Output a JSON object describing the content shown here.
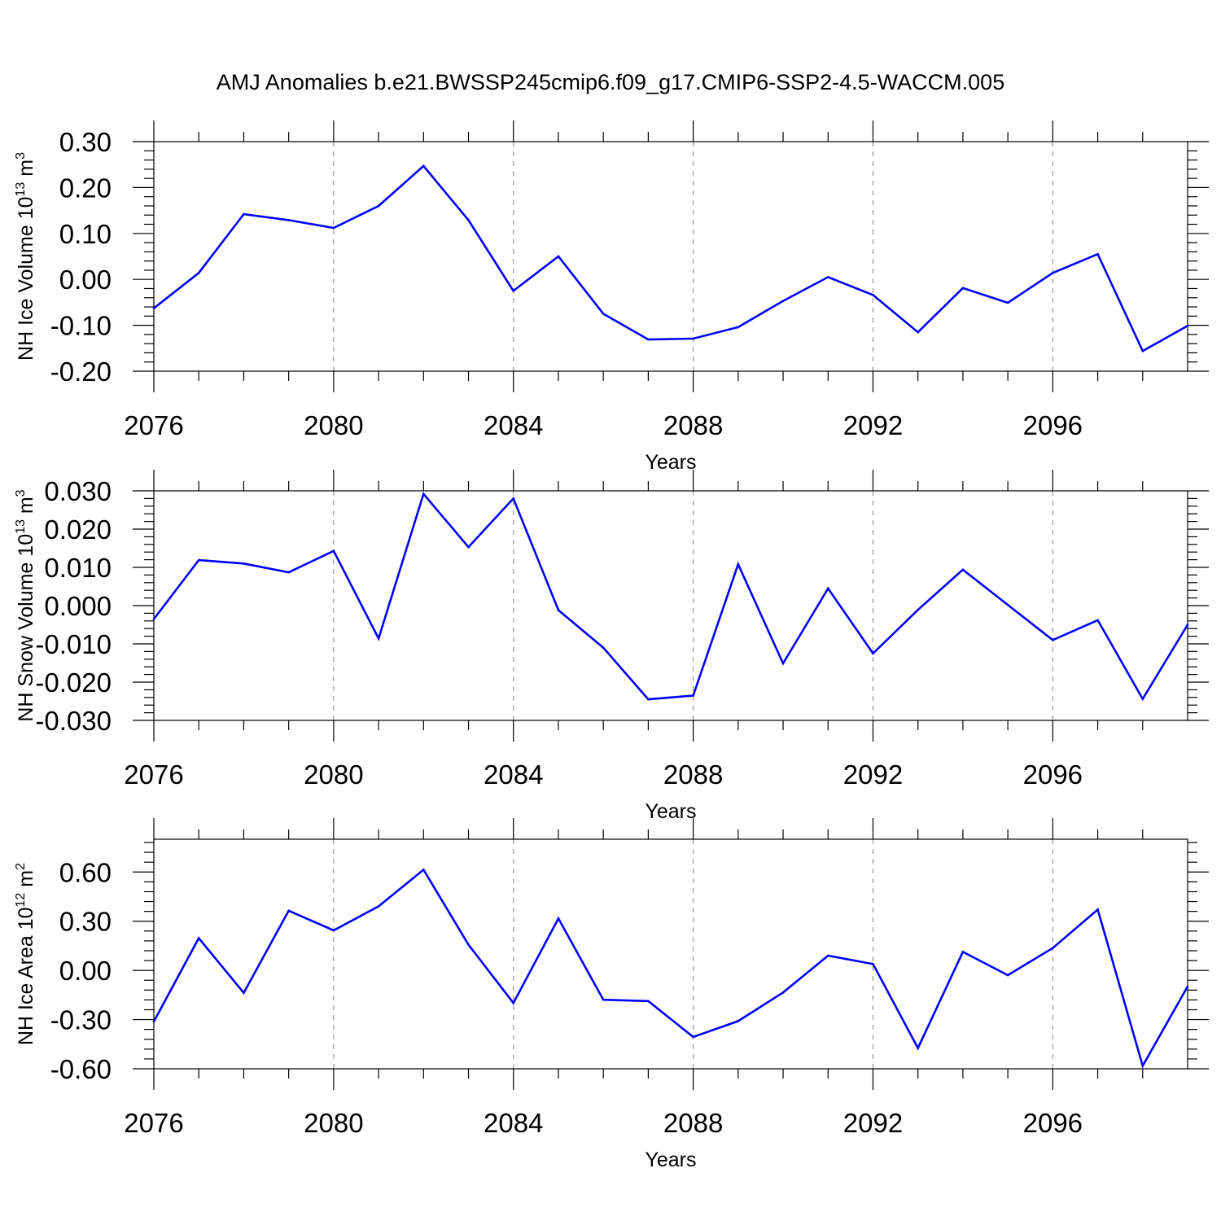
{
  "title": "AMJ Anomalies b.e21.BWSSP245cmip6.f09_g17.CMIP6-SSP2-4.5-WACCM.005",
  "series_color": "#0000ff",
  "chart_data": [
    {
      "type": "line",
      "ylabel": "NH Ice Volume 10",
      "ylabel_exp": "13",
      "ylabel_unit": " m",
      "ylabel_unit_exp": "3",
      "xlabel": "Years",
      "xlim": [
        2076,
        2099
      ],
      "ylim": [
        -0.2,
        0.3
      ],
      "grid": "dashed vertical",
      "x_ticks": [
        "2076",
        "2080",
        "2084",
        "2088",
        "2092",
        "2096"
      ],
      "y_ticks": [
        "0.30",
        "0.20",
        "0.10",
        "0.00",
        "-0.10",
        "-0.20"
      ],
      "x": [
        2076,
        2077,
        2078,
        2079,
        2080,
        2081,
        2082,
        2083,
        2084,
        2085,
        2086,
        2087,
        2088,
        2089,
        2090,
        2091,
        2092,
        2093,
        2094,
        2095,
        2096,
        2097,
        2098,
        2099
      ],
      "values": [
        -0.063,
        0.014,
        0.142,
        0.129,
        0.112,
        0.16,
        0.247,
        0.129,
        -0.025,
        0.05,
        -0.075,
        -0.131,
        -0.129,
        -0.104,
        -0.047,
        0.005,
        -0.034,
        -0.115,
        -0.019,
        -0.051,
        0.014,
        0.055,
        -0.156,
        -0.101
      ]
    },
    {
      "type": "line",
      "ylabel": "NH Snow Volume 10",
      "ylabel_exp": "13",
      "ylabel_unit": " m",
      "ylabel_unit_exp": "3",
      "xlabel": "Years",
      "xlim": [
        2076,
        2099
      ],
      "ylim": [
        -0.03,
        0.03
      ],
      "grid": "dashed vertical",
      "x_ticks": [
        "2076",
        "2080",
        "2084",
        "2088",
        "2092",
        "2096"
      ],
      "y_ticks": [
        "0.030",
        "0.020",
        "0.010",
        "0.000",
        "-0.010",
        "-0.020",
        "-0.030"
      ],
      "x": [
        2076,
        2077,
        2078,
        2079,
        2080,
        2081,
        2082,
        2083,
        2084,
        2085,
        2086,
        2087,
        2088,
        2089,
        2090,
        2091,
        2092,
        2093,
        2094,
        2095,
        2096,
        2097,
        2098,
        2099
      ],
      "values": [
        -0.0035,
        0.0119,
        0.011,
        0.0087,
        0.0143,
        -0.0086,
        0.0292,
        0.0153,
        0.028,
        -0.0012,
        -0.011,
        -0.0245,
        -0.0235,
        0.0108,
        -0.0151,
        0.0045,
        -0.0125,
        -0.0011,
        0.0094,
        0.0002,
        -0.009,
        -0.0038,
        -0.0244,
        -0.005
      ]
    },
    {
      "type": "line",
      "ylabel": "NH Ice Area 10",
      "ylabel_exp": "12",
      "ylabel_unit": " m",
      "ylabel_unit_exp": "2",
      "xlabel": "Years",
      "xlim": [
        2076,
        2099
      ],
      "ylim": [
        -0.6,
        0.8
      ],
      "grid": "dashed vertical",
      "x_ticks": [
        "2076",
        "2080",
        "2084",
        "2088",
        "2092",
        "2096"
      ],
      "y_ticks": [
        "0.60",
        "0.30",
        "0.00",
        "-0.30",
        "-0.60"
      ],
      "x": [
        2076,
        2077,
        2078,
        2079,
        2080,
        2081,
        2082,
        2083,
        2084,
        2085,
        2086,
        2087,
        2088,
        2089,
        2090,
        2091,
        2092,
        2093,
        2094,
        2095,
        2096,
        2097,
        2098,
        2099
      ],
      "values": [
        -0.312,
        0.197,
        -0.137,
        0.364,
        0.244,
        0.391,
        0.614,
        0.157,
        -0.199,
        0.317,
        -0.179,
        -0.187,
        -0.406,
        -0.309,
        -0.135,
        0.09,
        0.039,
        -0.474,
        0.113,
        -0.029,
        0.136,
        0.371,
        -0.582,
        -0.098
      ]
    }
  ]
}
